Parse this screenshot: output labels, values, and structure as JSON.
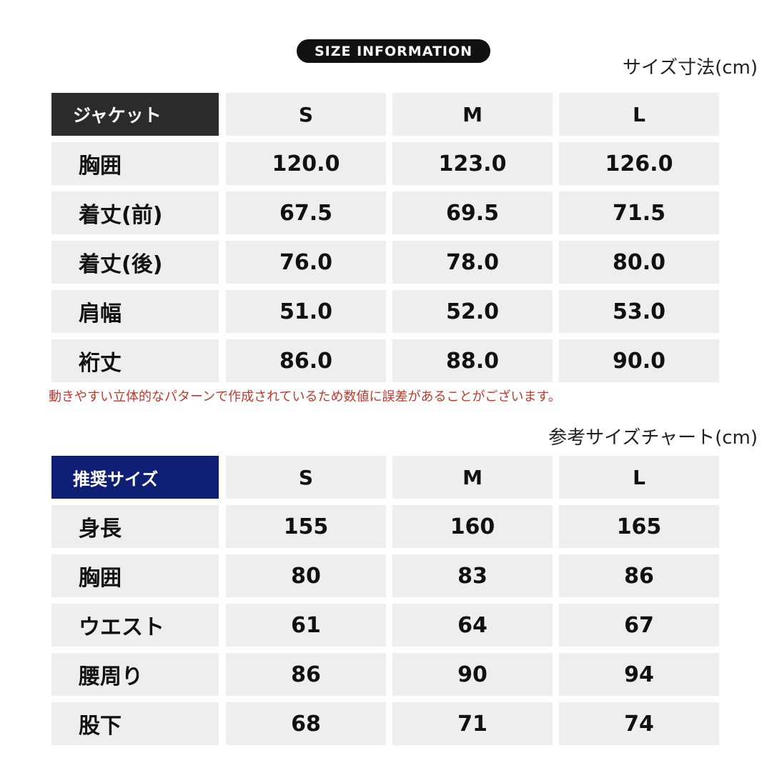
{
  "header": {
    "pill": "SIZE INFORMATION",
    "caption_top": "サイズ寸法(cm)"
  },
  "jacket_table": {
    "header_label": "ジャケット",
    "sizes": [
      "S",
      "M",
      "L"
    ],
    "rows": [
      {
        "label": "胸囲",
        "values": [
          "120.0",
          "123.0",
          "126.0"
        ]
      },
      {
        "label": "着丈(前)",
        "values": [
          "67.5",
          "69.5",
          "71.5"
        ]
      },
      {
        "label": "着丈(後)",
        "values": [
          "76.0",
          "78.0",
          "80.0"
        ]
      },
      {
        "label": "肩幅",
        "values": [
          "51.0",
          "52.0",
          "53.0"
        ]
      },
      {
        "label": "裄丈",
        "values": [
          "86.0",
          "88.0",
          "90.0"
        ]
      }
    ]
  },
  "note": "動きやすい立体的なパターンで作成されているため数値に誤差があることがございます。",
  "caption_bottom": "参考サイズチャート(cm)",
  "recommend_table": {
    "header_label": "推奨サイズ",
    "sizes": [
      "S",
      "M",
      "L"
    ],
    "rows": [
      {
        "label": "身長",
        "values": [
          "155",
          "160",
          "165"
        ]
      },
      {
        "label": "胸囲",
        "values": [
          "80",
          "83",
          "86"
        ]
      },
      {
        "label": "ウエスト",
        "values": [
          "61",
          "64",
          "67"
        ]
      },
      {
        "label": "腰周り",
        "values": [
          "86",
          "90",
          "94"
        ]
      },
      {
        "label": "股下",
        "values": [
          "68",
          "71",
          "74"
        ]
      }
    ]
  },
  "colors": {
    "jacket_header_bg": "#2b2b2b",
    "recommend_header_bg": "#0f1f75",
    "note_text": "#c0392b",
    "cell_bg": "#eeeeee"
  }
}
